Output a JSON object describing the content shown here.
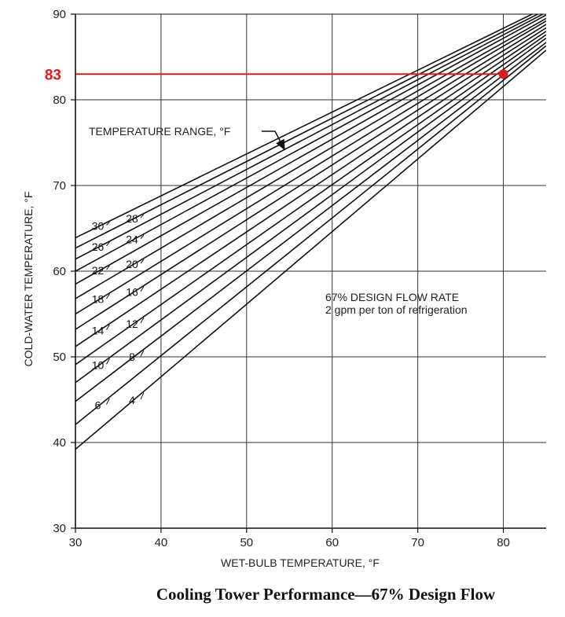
{
  "chart_data": {
    "type": "line",
    "title": "",
    "xlabel": "WET-BULB TEMPERATURE, °F",
    "ylabel": "COLD-WATER TEMPERATURE, °F",
    "xlim": [
      30,
      85
    ],
    "ylim": [
      30,
      90
    ],
    "x_ticks": [
      "30",
      "40",
      "50",
      "60",
      "70",
      "80"
    ],
    "y_ticks": [
      "30",
      "40",
      "50",
      "60",
      "70",
      "80",
      "90"
    ],
    "grid": true,
    "legend_title": "TEMPERATURE RANGE, °F",
    "annotation_lines": [
      "67% DESIGN FLOW RATE",
      "2 gpm per ton of refrigeration"
    ],
    "series": [
      {
        "name": "4",
        "points": [
          [
            30,
            39.2
          ],
          [
            85,
            85.8
          ]
        ]
      },
      {
        "name": "6",
        "points": [
          [
            30,
            42.1
          ],
          [
            85,
            86.3
          ]
        ]
      },
      {
        "name": "8",
        "points": [
          [
            30,
            44.8
          ],
          [
            85,
            86.7
          ]
        ]
      },
      {
        "name": "10",
        "points": [
          [
            30,
            47.0
          ],
          [
            85,
            87.2
          ]
        ]
      },
      {
        "name": "12",
        "points": [
          [
            30,
            49.1
          ],
          [
            85,
            87.6
          ]
        ]
      },
      {
        "name": "14",
        "points": [
          [
            30,
            51.2
          ],
          [
            85,
            88.0
          ]
        ]
      },
      {
        "name": "16",
        "points": [
          [
            30,
            53.2
          ],
          [
            85,
            88.4
          ]
        ]
      },
      {
        "name": "18",
        "points": [
          [
            30,
            55.0
          ],
          [
            85,
            88.8
          ]
        ]
      },
      {
        "name": "20",
        "points": [
          [
            30,
            56.8
          ],
          [
            85,
            89.2
          ]
        ]
      },
      {
        "name": "22",
        "points": [
          [
            30,
            58.5
          ],
          [
            85,
            89.5
          ]
        ]
      },
      {
        "name": "24",
        "points": [
          [
            30,
            60.0
          ],
          [
            85,
            89.9
          ]
        ]
      },
      {
        "name": "26",
        "points": [
          [
            30,
            61.4
          ],
          [
            85,
            90.2
          ]
        ]
      },
      {
        "name": "28",
        "points": [
          [
            30,
            62.7
          ],
          [
            85,
            90.5
          ]
        ]
      },
      {
        "name": "30",
        "points": [
          [
            30,
            63.9
          ],
          [
            85,
            90.8
          ]
        ]
      }
    ],
    "highlight": {
      "label": "83",
      "x": 80,
      "y": 83,
      "color": "#d42020"
    }
  },
  "caption": "Cooling Tower Performance—67% Design Flow"
}
